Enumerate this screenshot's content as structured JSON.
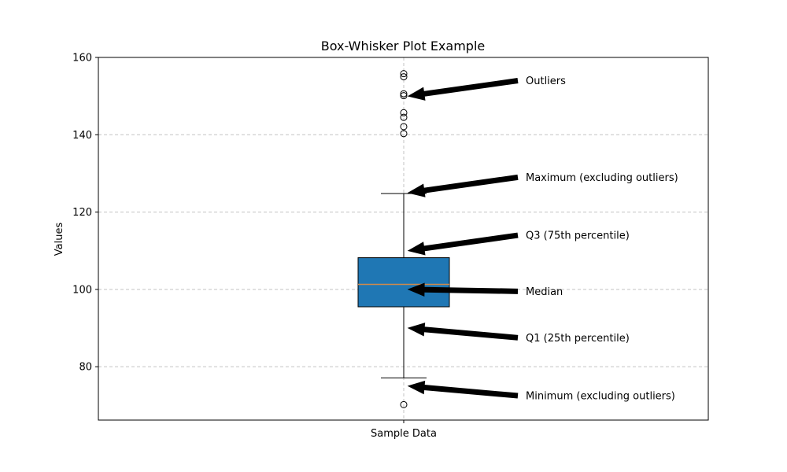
{
  "chart_data": {
    "type": "box",
    "title": "Box-Whisker Plot Example",
    "xlabel": "",
    "ylabel": "Values",
    "ylim": [
      66.2,
      160
    ],
    "yticks": [
      80,
      100,
      120,
      140,
      160
    ],
    "grid": true,
    "categories": [
      "Sample Data"
    ],
    "box": {
      "q1": 95.5,
      "median": 101.3,
      "q3": 108.2,
      "whisker_low": 77.1,
      "whisker_high": 124.8,
      "outliers": [
        70.2,
        140.3,
        142.1,
        144.5,
        145.7,
        150.1,
        150.6,
        155.0,
        155.8
      ],
      "fill_color": "#1f77b4",
      "median_color": "#d08a4a"
    },
    "annotations": [
      {
        "text": "Outliers",
        "target_y": 150,
        "label_y": 154
      },
      {
        "text": "Maximum (excluding outliers)",
        "target_y": 125,
        "label_y": 129
      },
      {
        "text": "Q3 (75th percentile)",
        "target_y": 110,
        "label_y": 114
      },
      {
        "text": "Median",
        "target_y": 100,
        "label_y": 99.5
      },
      {
        "text": "Q1 (25th percentile)",
        "target_y": 90,
        "label_y": 87.5
      },
      {
        "text": "Minimum (excluding outliers)",
        "target_y": 75,
        "label_y": 72.5
      }
    ]
  }
}
